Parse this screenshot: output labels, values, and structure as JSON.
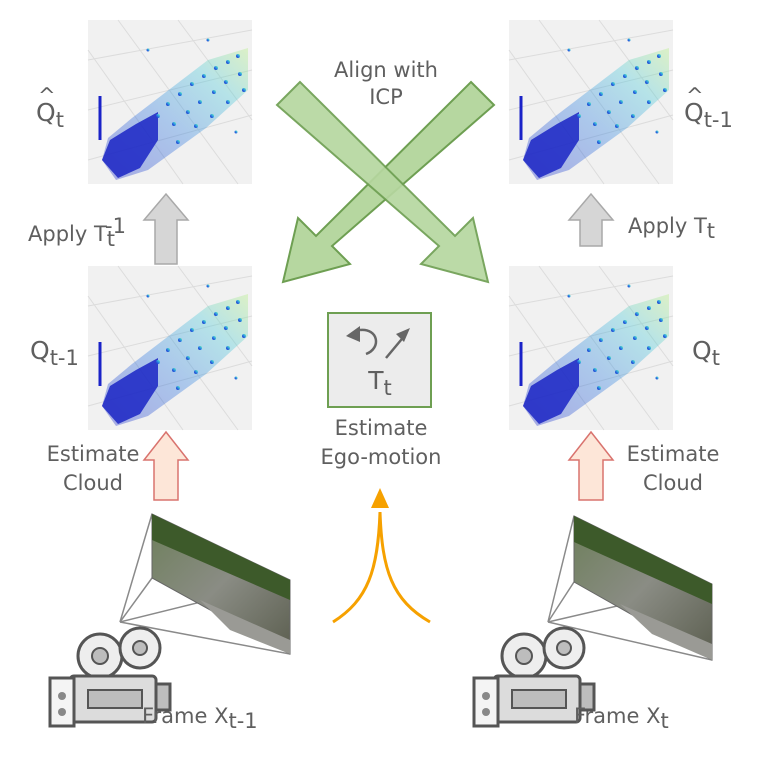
{
  "nodes": {
    "q_hat_t": {
      "base": "Q",
      "sub": "t"
    },
    "q_hat_t_minus_1": {
      "base": "Q",
      "sub": "t-1"
    },
    "q_t_minus_1": {
      "base": "Q",
      "sub": "t-1"
    },
    "q_t": {
      "base": "Q",
      "sub": "t"
    },
    "transform": {
      "base": "T",
      "sub": "t"
    }
  },
  "edges": {
    "align": {
      "line1": "Align with",
      "line2": "ICP"
    },
    "apply_inverse": {
      "text": "Apply T",
      "sub": "t",
      "sup": "-1"
    },
    "apply": {
      "text": "Apply T",
      "sub": "t"
    },
    "estimate_cloud_left": {
      "line1": "Estimate",
      "line2": "Cloud"
    },
    "estimate_cloud_right": {
      "line1": "Estimate",
      "line2": "Cloud"
    },
    "estimate_ego": {
      "line1": "Estimate",
      "line2": "Ego-motion"
    }
  },
  "frames": {
    "left": {
      "text": "Frame X",
      "sub": "t-1"
    },
    "right": {
      "text": "Frame X",
      "sub": "t"
    }
  },
  "colors": {
    "align_arrow_fill": "#b6d7a0",
    "align_arrow_stroke": "#6e9f52",
    "apply_arrow_fill": "#d6d6d6",
    "estimate_arrow_fill": "#fde6d8",
    "estimate_arrow_stroke": "#d9736e",
    "ego_arrow": "#f5a000",
    "point_cloud_near": "#1f2fd0",
    "point_cloud_far": "#a8f07a"
  }
}
